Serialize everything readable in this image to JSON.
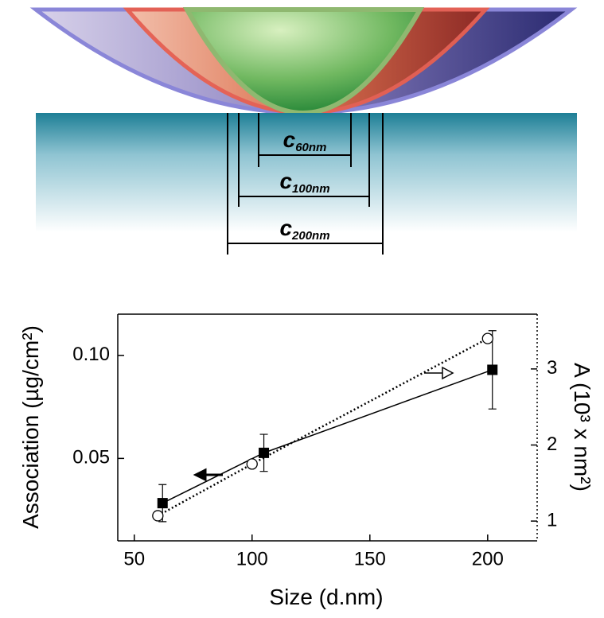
{
  "diagram": {
    "labels": [
      {
        "symbol": "c",
        "sub": "60nm"
      },
      {
        "symbol": "c",
        "sub": "100nm"
      },
      {
        "symbol": "c",
        "sub": "200nm"
      }
    ]
  },
  "chart_data": {
    "type": "line",
    "xlabel": "Size (d.nm)",
    "ylabel": "Association (µg/cm²)",
    "y2label": "A (10³ x nm²)",
    "xlim": [
      43,
      221
    ],
    "xticks": [
      50,
      100,
      150,
      200
    ],
    "ylim": [
      0.01,
      0.12
    ],
    "yticks": [
      {
        "value": 0.05,
        "label": "0.05"
      },
      {
        "value": 0.1,
        "label": "0.10"
      }
    ],
    "y2lim": [
      0.74,
      3.72
    ],
    "y2ticks": [
      1,
      2,
      3
    ],
    "series": [
      {
        "color": "#000000",
        "marker": "square",
        "dash": "solid",
        "x": [
          62,
          105,
          202
        ],
        "values": [
          0.0283,
          0.0527,
          0.093
        ],
        "errors": [
          0.009,
          0.009,
          0.019
        ]
      },
      {
        "color": "#000000",
        "marker": "circle",
        "dash": "dotted",
        "axis": "y2",
        "x": [
          60,
          100,
          200
        ],
        "values": [
          1.07,
          1.75,
          3.4
        ]
      }
    ]
  }
}
